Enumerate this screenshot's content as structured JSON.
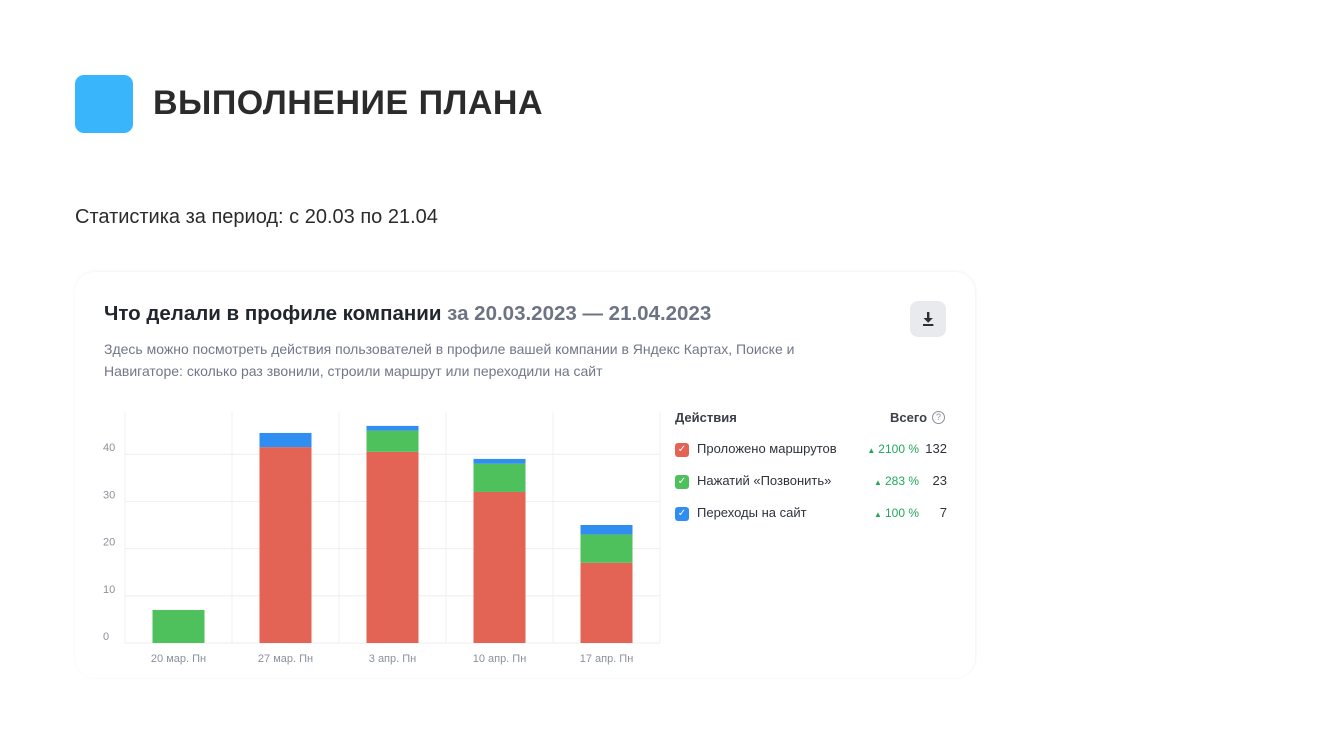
{
  "header": {
    "title": "ВЫПОЛНЕНИЕ ПЛАНА",
    "period": "Статистика за период: с 20.03 по 21.04"
  },
  "card": {
    "title": "Что делали в профиле компании",
    "range": "за 20.03.2023 — 21.04.2023",
    "description": "Здесь можно посмотреть действия пользователей в профиле вашей компании в Яндекс Картах, Поиске и Навигаторе: сколько раз звонили, строили маршрут или переходили на сайт",
    "download_icon": "download-icon"
  },
  "legend": {
    "col_actions": "Действия",
    "col_total": "Всего",
    "help_icon": "?",
    "check_mark": "✓",
    "trend_icon": "▲",
    "items": [
      {
        "label": "Проложено маршрутов",
        "delta": "2100 %",
        "total": "132",
        "color": "#e36354"
      },
      {
        "label": "Нажатий «Позвонить»",
        "delta": "283 %",
        "total": "23",
        "color": "#4fc15c"
      },
      {
        "label": "Переходы на сайт",
        "delta": "100 %",
        "total": "7",
        "color": "#2f8ef0"
      }
    ]
  },
  "chart_data": {
    "type": "bar",
    "stacked": true,
    "categories": [
      "20 мар. Пн",
      "27 мар. Пн",
      "3 апр. Пн",
      "10 апр. Пн",
      "17 апр. Пн"
    ],
    "series": [
      {
        "name": "Проложено маршрутов",
        "values": [
          0,
          41.5,
          40.5,
          32,
          17
        ],
        "color": "#e36354"
      },
      {
        "name": "Нажатий «Позвонить»",
        "values": [
          7,
          0,
          4.5,
          6,
          6
        ],
        "color": "#4fc15c"
      },
      {
        "name": "Переходы на сайт",
        "values": [
          0,
          3,
          1,
          1,
          2
        ],
        "color": "#2f8ef0"
      }
    ],
    "ylim": [
      0,
      50
    ],
    "yticks": [
      0,
      10,
      20,
      30,
      40
    ],
    "grid": true,
    "xlabel": "",
    "ylabel": ""
  }
}
